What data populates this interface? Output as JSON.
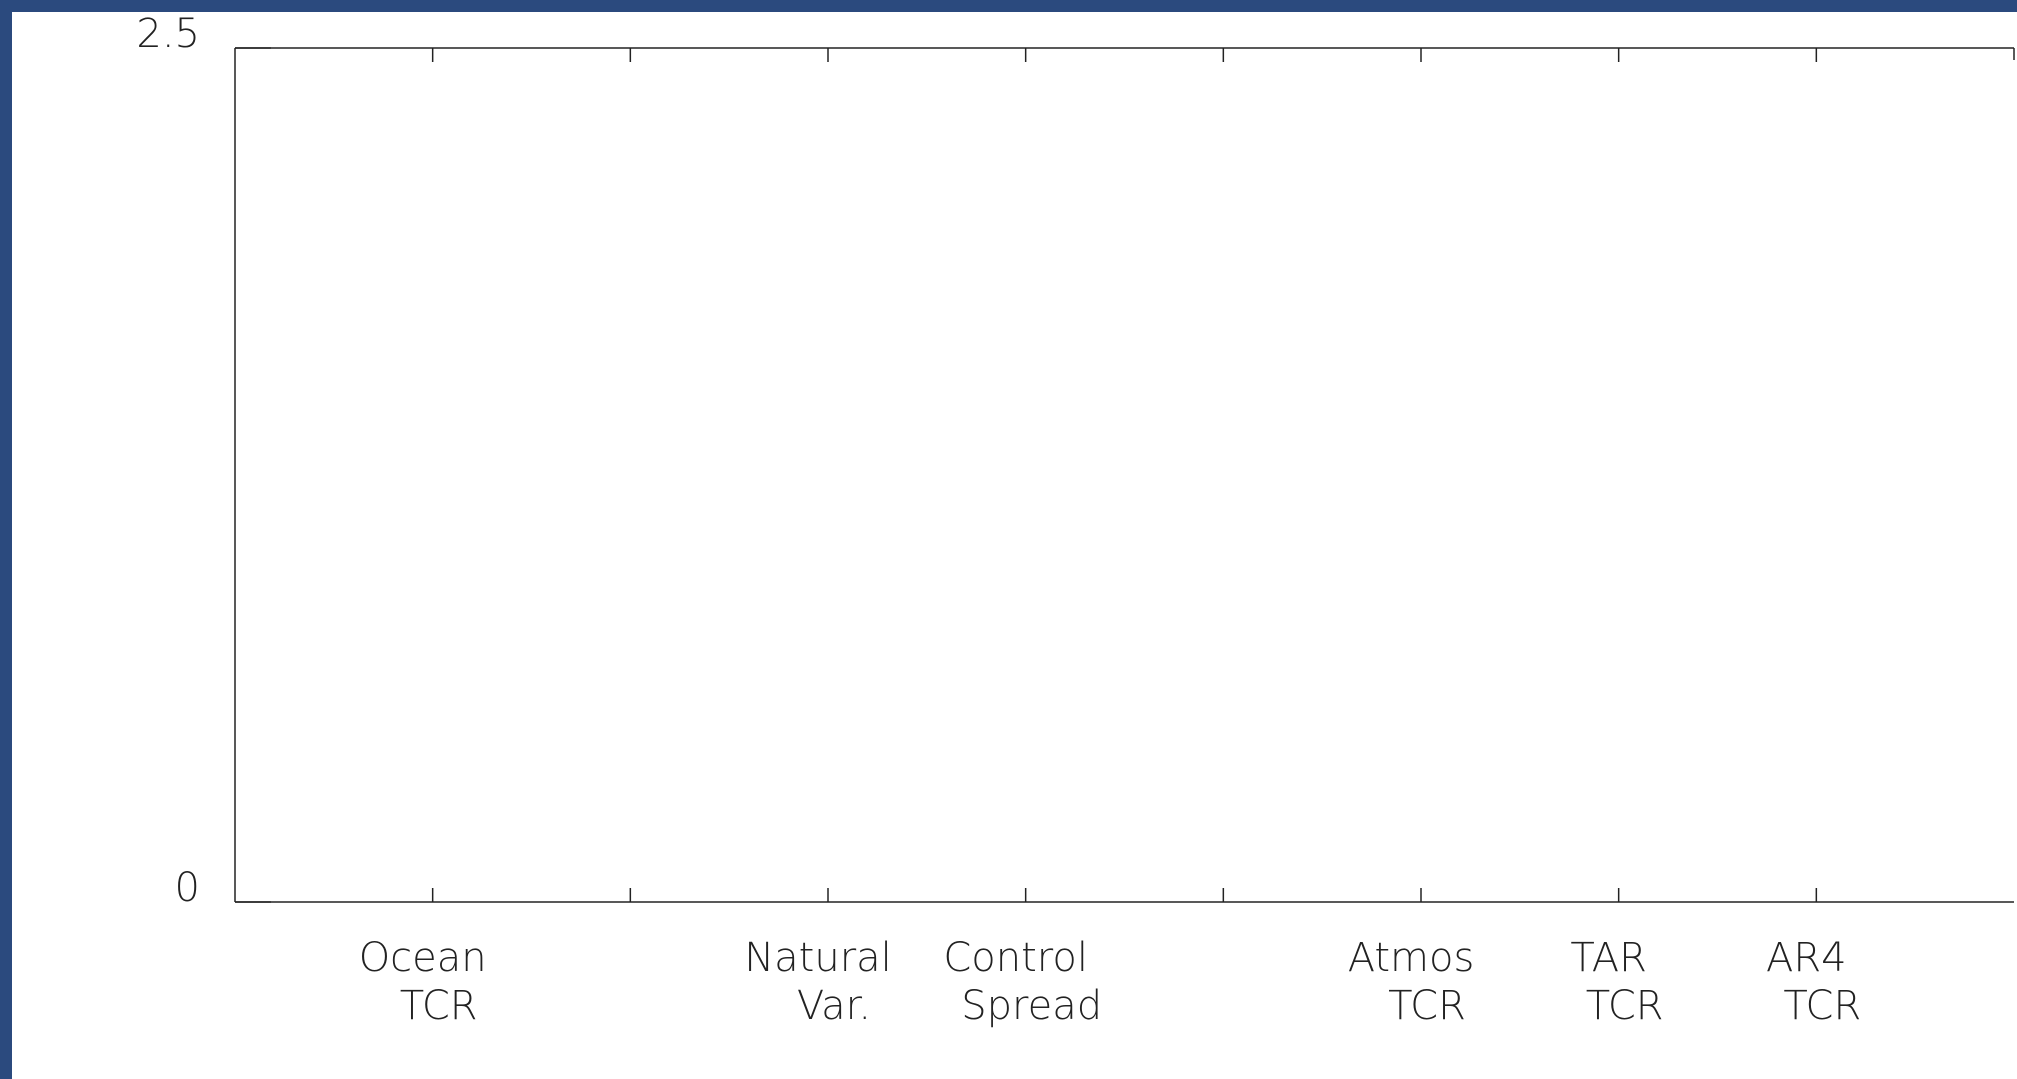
{
  "chart_data": {
    "type": "bar",
    "categories": [
      [
        "Ocean",
        "TCR"
      ],
      null,
      [
        "Natural",
        "Var."
      ],
      [
        "Control",
        "Spread"
      ],
      null,
      [
        "Atmos",
        "TCR"
      ],
      [
        "TAR",
        "TCR"
      ],
      [
        "AR4",
        "TCR"
      ]
    ],
    "ylim": [
      0,
      2.5
    ],
    "yticks": [
      0,
      2.5
    ]
  }
}
